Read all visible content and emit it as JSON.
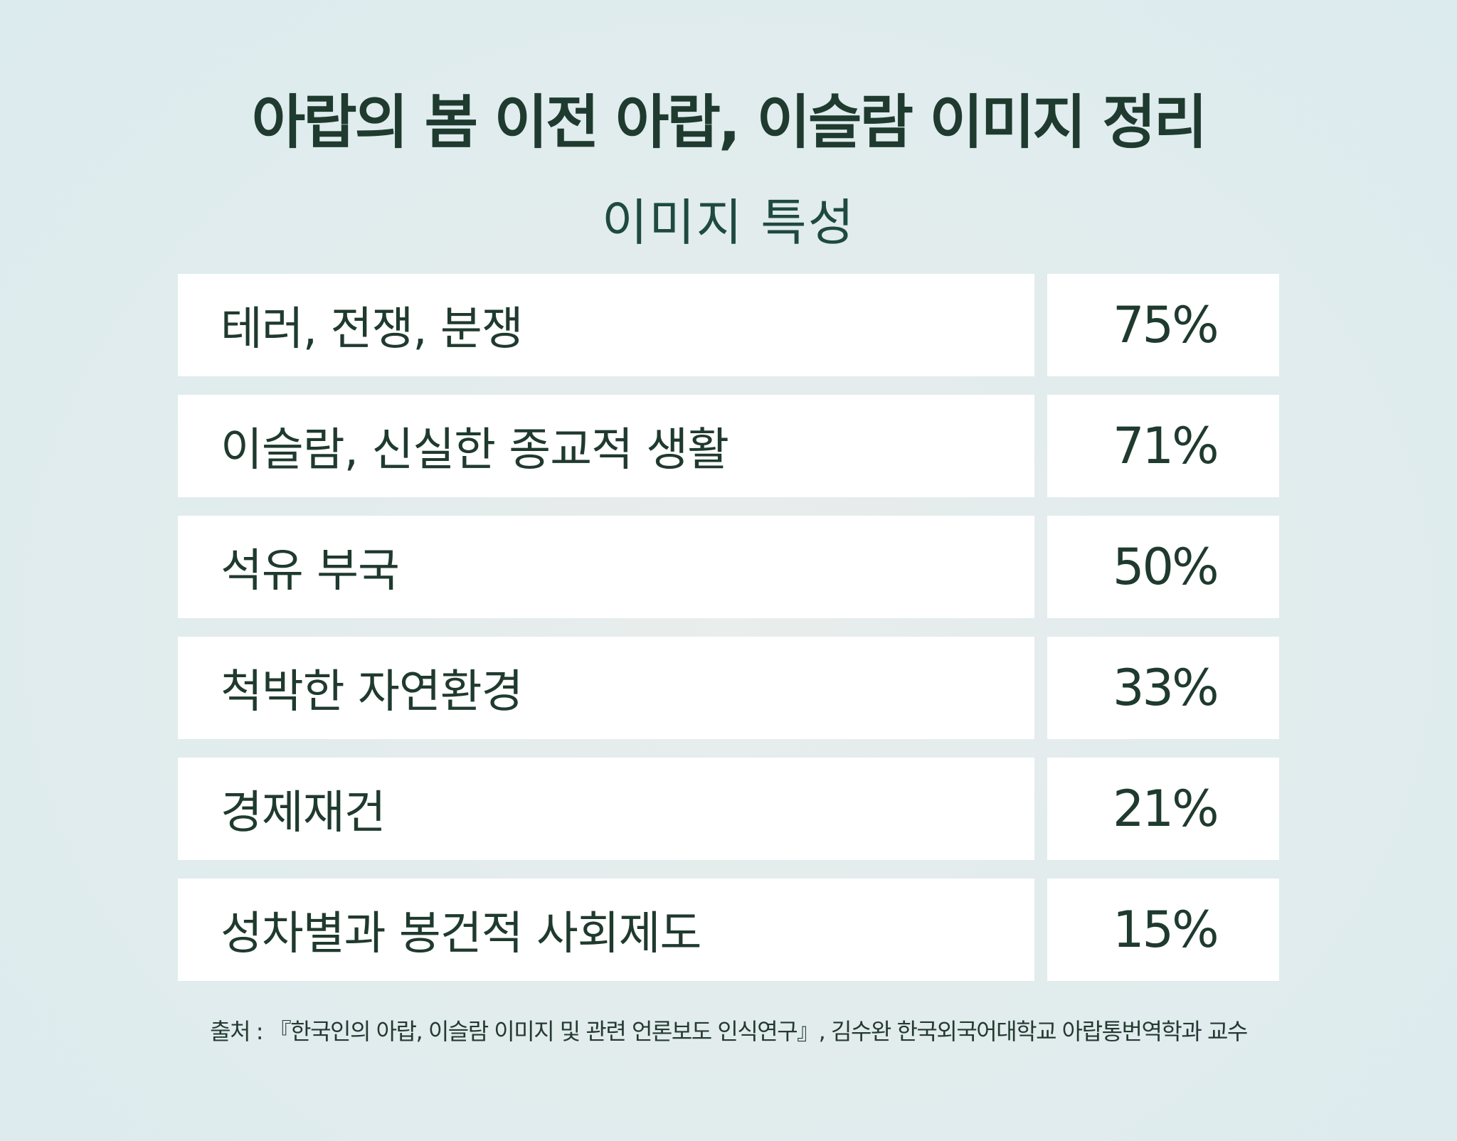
{
  "title": "아랍의 봄 이전 아랍, 이슬람 이미지 정리",
  "colors": {
    "background": "#dcebee",
    "text": "#1f3a2e",
    "subtitle": "#1e4a40",
    "cell": "#ffffff"
  },
  "chart_data": {
    "type": "table",
    "title": "아랍의 봄 이전 아랍, 이슬람 이미지 정리",
    "columns": [
      "이미지 특성",
      ""
    ],
    "rows": [
      {
        "label": "테러, 전쟁, 분쟁",
        "value": "75%"
      },
      {
        "label": "이슬람, 신실한 종교적 생활",
        "value": "71%"
      },
      {
        "label": "석유 부국",
        "value": "50%"
      },
      {
        "label": "척박한 자연환경",
        "value": "33%"
      },
      {
        "label": "경제재건",
        "value": "21%"
      },
      {
        "label": "성차별과 봉건적 사회제도",
        "value": "15%"
      }
    ],
    "values": [
      75,
      71,
      50,
      33,
      21,
      15
    ],
    "unit": "%"
  },
  "source": "출처 : 『한국인의 아랍, 이슬람 이미지 및 관련 언론보도 인식연구』, 김수완 한국외국어대학교 아랍통번역학과 교수"
}
